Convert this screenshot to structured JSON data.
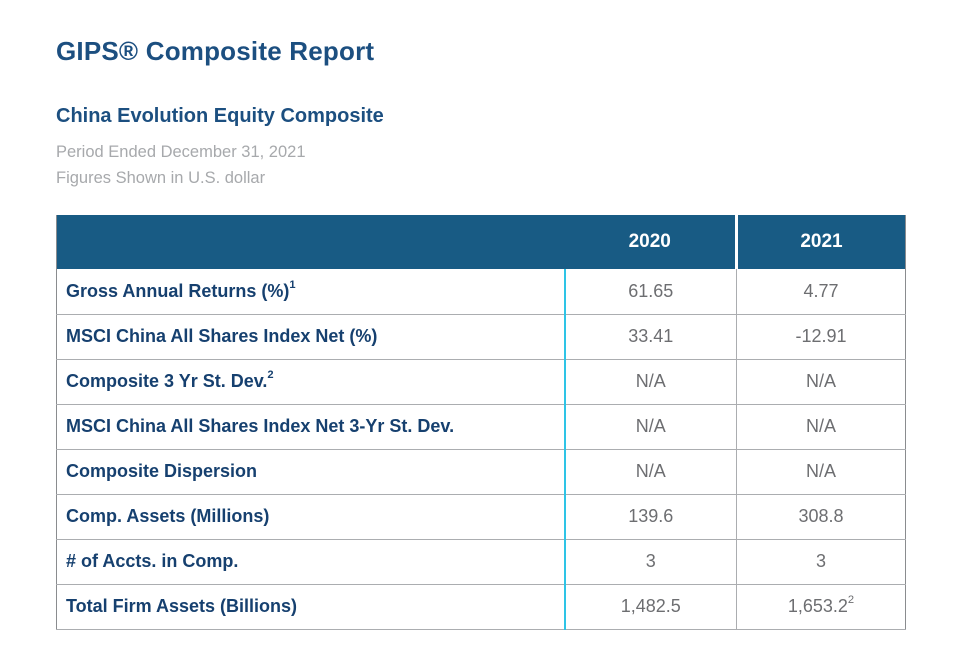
{
  "header": {
    "title": "GIPS® Composite Report",
    "subtitle": "China Evolution Equity Composite",
    "period_line": "Period Ended December 31, 2021",
    "currency_line": "Figures Shown in U.S. dollar"
  },
  "table": {
    "columns": [
      "2020",
      "2021"
    ],
    "rows": [
      {
        "label": "Gross Annual Returns (%)",
        "label_sup": "1",
        "values": [
          "61.65",
          "4.77"
        ],
        "value_sups": [
          "",
          ""
        ]
      },
      {
        "label": "MSCI China All Shares Index Net (%)",
        "label_sup": "",
        "values": [
          "33.41",
          "-12.91"
        ],
        "value_sups": [
          "",
          ""
        ]
      },
      {
        "label": "Composite 3 Yr St. Dev.",
        "label_sup": "2",
        "values": [
          "N/A",
          "N/A"
        ],
        "value_sups": [
          "",
          ""
        ]
      },
      {
        "label": "MSCI China All Shares Index Net 3-Yr St. Dev.",
        "label_sup": "",
        "values": [
          "N/A",
          "N/A"
        ],
        "value_sups": [
          "",
          ""
        ]
      },
      {
        "label": "Composite Dispersion",
        "label_sup": "",
        "values": [
          "N/A",
          "N/A"
        ],
        "value_sups": [
          "",
          ""
        ]
      },
      {
        "label": "Comp. Assets (Millions)",
        "label_sup": "",
        "values": [
          "139.6",
          "308.8"
        ],
        "value_sups": [
          "",
          ""
        ]
      },
      {
        "label": "# of Accts. in Comp.",
        "label_sup": "",
        "values": [
          "3",
          "3"
        ],
        "value_sups": [
          "",
          ""
        ]
      },
      {
        "label": "Total Firm Assets (Billions)",
        "label_sup": "",
        "values": [
          "1,482.5",
          "1,653.2"
        ],
        "value_sups": [
          "",
          "2"
        ]
      }
    ]
  },
  "colors": {
    "header_bg": "#185B84",
    "title_text": "#1C4F80",
    "label_text": "#16406F",
    "value_text": "#6D6E71",
    "muted_text": "#A7A9AC",
    "cyan_divider": "#2EC4E6",
    "row_border": "#ABADB0",
    "outer_border": "#8A8C8F"
  }
}
